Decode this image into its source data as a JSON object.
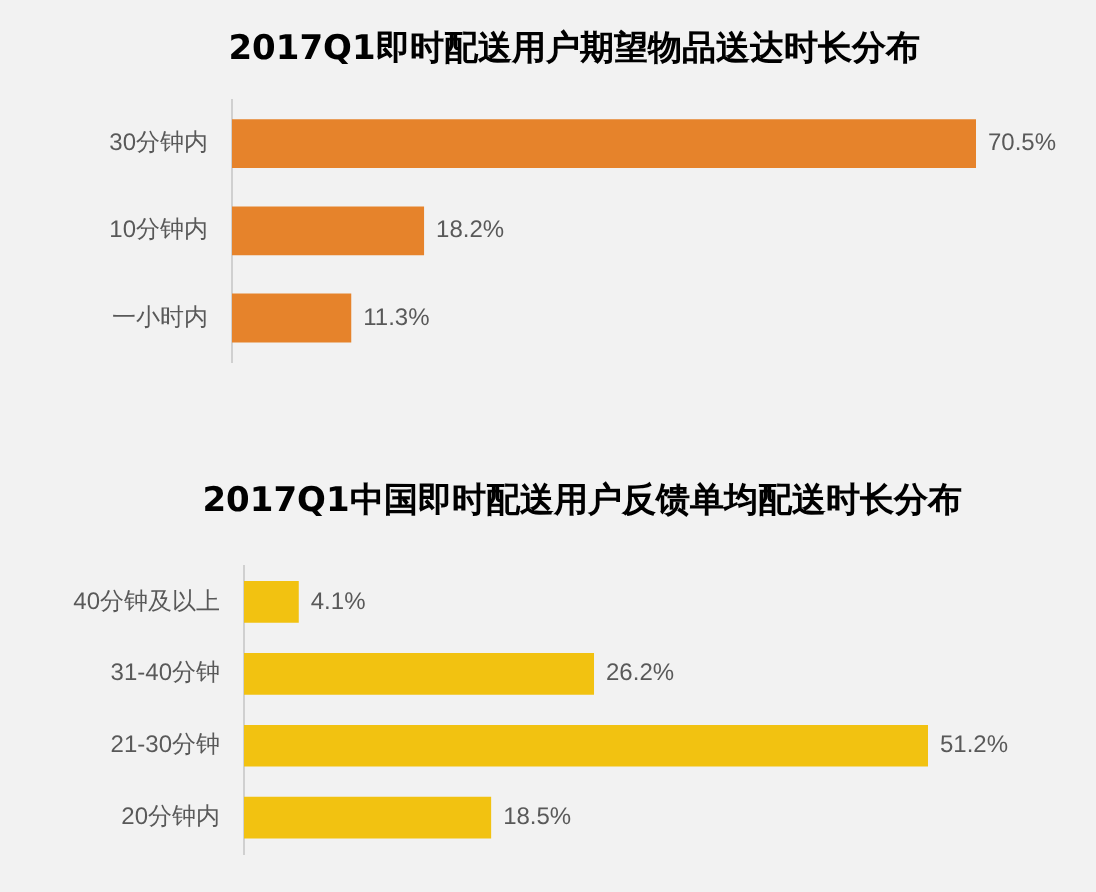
{
  "chart_data": [
    {
      "type": "bar",
      "orientation": "horizontal",
      "title": "2017Q1即时配送用户期望物品送达时长分布",
      "categories": [
        "30分钟内",
        "10分钟内",
        "一小时内"
      ],
      "values": [
        70.5,
        18.2,
        11.3
      ],
      "color": "#e6832b",
      "value_labels": [
        "70.5%",
        "18.2%",
        "11.3%"
      ],
      "tick_labels": "y",
      "grid": false,
      "legend": false
    },
    {
      "type": "bar",
      "orientation": "horizontal",
      "title": "2017Q1中国即时配送用户反馈单均配送时长分布",
      "categories": [
        "40分钟及以上",
        "31-40分钟",
        "21-30分钟",
        "20分钟内"
      ],
      "values": [
        4.1,
        26.2,
        51.2,
        18.5
      ],
      "color": "#f2c211",
      "value_labels": [
        "4.1%",
        "26.2%",
        "51.2%",
        "18.5%"
      ],
      "tick_labels": "y",
      "grid": false,
      "legend": false
    }
  ]
}
